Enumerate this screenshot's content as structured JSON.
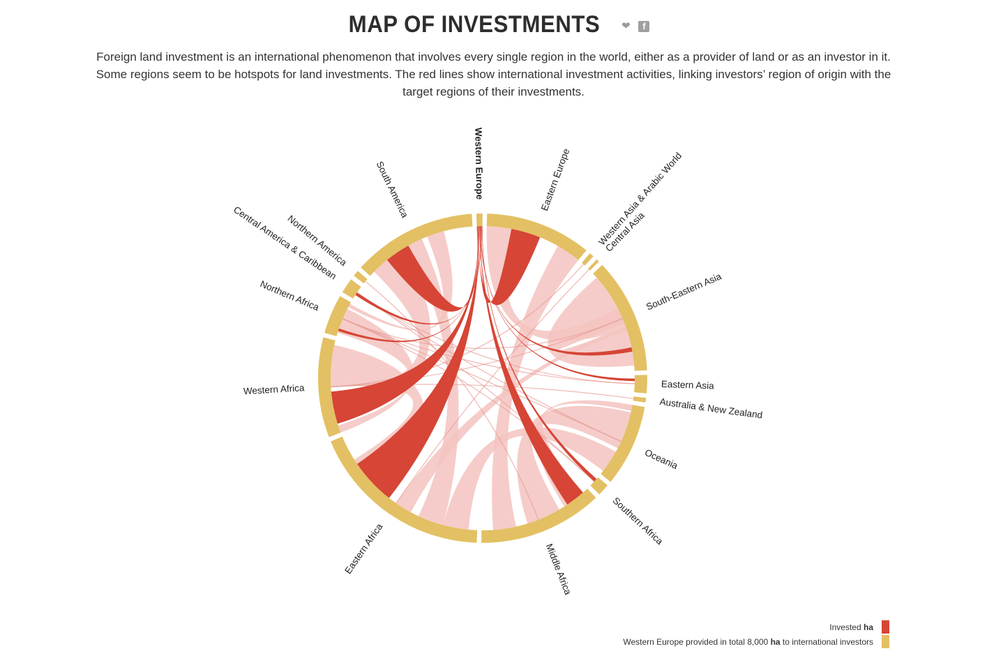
{
  "header": {
    "title": "MAP OF INVESTMENTS",
    "share_icons": [
      "twitter-icon",
      "facebook-icon"
    ],
    "intro": "Foreign land investment is an international phenomenon that involves every single region in the world, either as a provider of land or as an investor in it. Some regions seem to be hotspots for land investments. The red lines show international investment activities, linking investors’ region of origin with the target regions of their investments."
  },
  "legend": {
    "invested_prefix": "Invested ",
    "invested_unit": "ha",
    "provided_prefix": "Western Europe provided in total 8,000 ",
    "provided_unit": "ha",
    "provided_suffix": " to international investors",
    "invested_color": "#d64535",
    "provided_color": "#e3c063"
  },
  "chart_data": {
    "type": "chord",
    "selected_region": "Western Europe",
    "colors": {
      "region_arc": "#e3c063",
      "selected_flow": "#d64535",
      "other_flow": "#f3c3bf"
    },
    "regions": [
      "Western Europe",
      "Eastern Europe",
      "Western Asia & Arabic World",
      "Central Asia",
      "South-Eastern Asia",
      "Eastern Asia",
      "Australia & New Zealand",
      "Oceania",
      "Southern Africa",
      "Middle Africa",
      "Eastern Africa",
      "Western Africa",
      "Northern Africa",
      "Central America & Caribbean",
      "Northern America",
      "South America"
    ],
    "region_shares": [
      2,
      35,
      1.5,
      1,
      38,
      6,
      1.5,
      27,
      4,
      41,
      61,
      33,
      13,
      5,
      2,
      41
    ]
  }
}
